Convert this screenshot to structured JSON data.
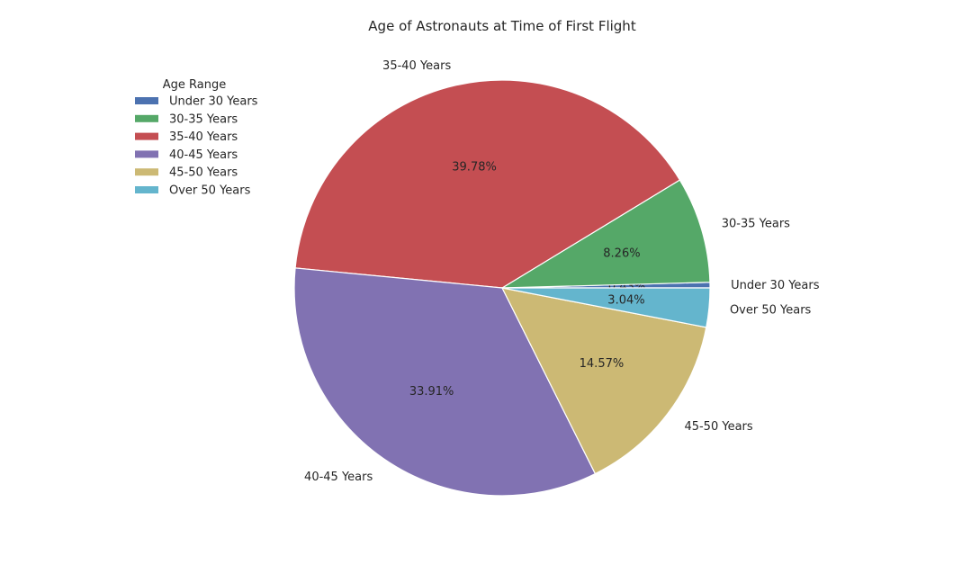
{
  "chart_data": {
    "type": "pie",
    "title": "Age of Astronauts at Time of First Flight",
    "categories": [
      "Under 30 Years",
      "30-35 Years",
      "35-40 Years",
      "40-45 Years",
      "45-50 Years",
      "Over 50 Years"
    ],
    "values": [
      0.43,
      8.26,
      39.78,
      33.91,
      14.57,
      3.04
    ],
    "pct_labels": [
      "0.43%",
      "8.26%",
      "39.78%",
      "33.91%",
      "14.57%",
      "3.04%"
    ],
    "colors": [
      "#4C72B0",
      "#55A868",
      "#C44E52",
      "#8172B2",
      "#CCB974",
      "#64B5CD"
    ],
    "start_angle": 0,
    "direction": "counterclockwise",
    "legend": {
      "title": "Age Range",
      "placement": "upper-left"
    }
  }
}
